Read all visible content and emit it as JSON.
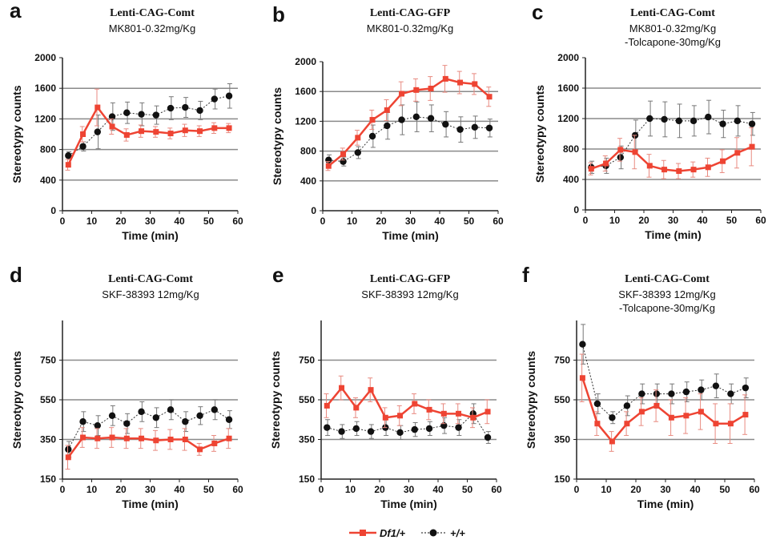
{
  "legend": {
    "entries": [
      {
        "label": "Df1/+",
        "color": "#ee4433",
        "marker": "square"
      },
      {
        "label": "+/+",
        "color": "#111111",
        "marker": "circle"
      }
    ]
  },
  "chart_data": [
    {
      "type": "line",
      "panel_label": "a",
      "title": "Lenti-CAG-Comt",
      "subtitle": [
        "MK801-0.32mg/Kg"
      ],
      "xlabel": "Time (min)",
      "ylabel": "Stereotypy counts",
      "xlim": [
        0,
        60
      ],
      "ylim": [
        0,
        2000
      ],
      "xticks": [
        0,
        10,
        20,
        30,
        40,
        50,
        60
      ],
      "yticks": [
        0,
        400,
        800,
        1200,
        1600,
        2000
      ],
      "gridlines_y": [
        400,
        800,
        1200,
        1600
      ],
      "x": [
        2,
        7,
        12,
        17,
        22,
        27,
        32,
        37,
        42,
        47,
        52,
        57
      ],
      "series": [
        {
          "name": "Df1/+",
          "values": [
            600,
            1000,
            1350,
            1100,
            990,
            1040,
            1030,
            1010,
            1050,
            1040,
            1080,
            1080
          ],
          "err": [
            70,
            100,
            240,
            100,
            80,
            80,
            70,
            70,
            80,
            70,
            70,
            60
          ]
        },
        {
          "name": "+/+",
          "values": [
            720,
            840,
            1030,
            1230,
            1280,
            1260,
            1250,
            1340,
            1350,
            1310,
            1460,
            1500
          ],
          "err": [
            50,
            60,
            220,
            180,
            140,
            150,
            120,
            150,
            130,
            120,
            130,
            160
          ]
        }
      ]
    },
    {
      "type": "line",
      "panel_label": "b",
      "title": "Lenti-CAG-GFP",
      "subtitle": [
        "MK801-0.32mg/Kg"
      ],
      "xlabel": "Time (min)",
      "ylabel": "Stereotypy counts",
      "xlim": [
        0,
        60
      ],
      "ylim": [
        0,
        2000
      ],
      "xticks": [
        0,
        10,
        20,
        30,
        40,
        50,
        60
      ],
      "yticks": [
        0,
        400,
        800,
        1200,
        1600,
        2000
      ],
      "gridlines_y": [
        400,
        800,
        1200,
        1600
      ],
      "x": [
        2,
        7,
        12,
        17,
        22,
        27,
        32,
        37,
        42,
        47,
        52,
        57
      ],
      "series": [
        {
          "name": "Df1/+",
          "values": [
            600,
            760,
            980,
            1220,
            1350,
            1570,
            1620,
            1640,
            1770,
            1720,
            1700,
            1530
          ],
          "err": [
            60,
            80,
            100,
            130,
            140,
            160,
            150,
            160,
            180,
            150,
            140,
            130
          ]
        },
        {
          "name": "+/+",
          "values": [
            680,
            660,
            780,
            1000,
            1140,
            1220,
            1260,
            1240,
            1160,
            1090,
            1120,
            1110
          ],
          "err": [
            70,
            60,
            80,
            150,
            180,
            200,
            200,
            180,
            170,
            170,
            150,
            120
          ]
        }
      ]
    },
    {
      "type": "line",
      "panel_label": "c",
      "title": "Lenti-CAG-Comt",
      "subtitle": [
        "MK801-0.32mg/Kg",
        "-Tolcapone-30mg/Kg"
      ],
      "xlabel": "Time (min)",
      "ylabel": "Stereotypy counts",
      "xlim": [
        0,
        60
      ],
      "ylim": [
        0,
        2000
      ],
      "xticks": [
        0,
        10,
        20,
        30,
        40,
        50,
        60
      ],
      "yticks": [
        0,
        400,
        800,
        1200,
        1600,
        2000
      ],
      "gridlines_y": [
        400,
        800,
        1200,
        1600
      ],
      "x": [
        2,
        7,
        12,
        17,
        22,
        27,
        32,
        37,
        42,
        47,
        52,
        57
      ],
      "series": [
        {
          "name": "Df1/+",
          "values": [
            540,
            610,
            790,
            760,
            580,
            530,
            510,
            530,
            560,
            640,
            750,
            830
          ],
          "err": [
            80,
            100,
            150,
            220,
            150,
            120,
            100,
            100,
            120,
            150,
            200,
            250
          ]
        },
        {
          "name": "+/+",
          "values": [
            560,
            580,
            690,
            980,
            1200,
            1190,
            1170,
            1170,
            1220,
            1130,
            1170,
            1130
          ],
          "err": [
            80,
            100,
            150,
            200,
            230,
            230,
            220,
            200,
            220,
            180,
            200,
            150
          ]
        }
      ]
    },
    {
      "type": "line",
      "panel_label": "d",
      "title": "Lenti-CAG-Comt",
      "subtitle": [
        "SKF-38393 12mg/Kg"
      ],
      "xlabel": "Time (min)",
      "ylabel": "Stereotypy counts",
      "xlim": [
        0,
        60
      ],
      "ylim": [
        150,
        950
      ],
      "xticks": [
        0,
        10,
        20,
        30,
        40,
        50,
        60
      ],
      "yticks": [
        150,
        350,
        550,
        750
      ],
      "gridlines_y": [
        350,
        550,
        750
      ],
      "x": [
        2,
        7,
        12,
        17,
        22,
        27,
        32,
        37,
        42,
        47,
        52,
        57
      ],
      "series": [
        {
          "name": "Df1/+",
          "values": [
            260,
            360,
            355,
            360,
            355,
            355,
            345,
            350,
            350,
            300,
            330,
            355
          ],
          "err": [
            60,
            50,
            50,
            50,
            50,
            50,
            50,
            50,
            55,
            30,
            40,
            50
          ]
        },
        {
          "name": "+/+",
          "values": [
            300,
            440,
            420,
            470,
            430,
            490,
            460,
            500,
            440,
            470,
            500,
            450
          ],
          "err": [
            40,
            50,
            50,
            50,
            50,
            50,
            50,
            50,
            50,
            45,
            50,
            45
          ]
        }
      ]
    },
    {
      "type": "line",
      "panel_label": "e",
      "title": "Lenti-CAG-GFP",
      "subtitle": [
        "SKF-38393 12mg/Kg"
      ],
      "xlabel": "Time (min)",
      "ylabel": "Stereotypy counts",
      "xlim": [
        0,
        60
      ],
      "ylim": [
        150,
        950
      ],
      "xticks": [
        0,
        10,
        20,
        30,
        40,
        50,
        60
      ],
      "yticks": [
        150,
        350,
        550,
        750
      ],
      "gridlines_y": [
        350,
        550,
        750
      ],
      "x": [
        2,
        7,
        12,
        17,
        22,
        27,
        32,
        37,
        42,
        47,
        52,
        57
      ],
      "series": [
        {
          "name": "Df1/+",
          "values": [
            520,
            610,
            510,
            600,
            460,
            470,
            530,
            500,
            480,
            480,
            460,
            490
          ],
          "err": [
            60,
            60,
            50,
            60,
            50,
            50,
            50,
            50,
            50,
            50,
            50,
            60
          ]
        },
        {
          "name": "+/+",
          "values": [
            410,
            390,
            405,
            390,
            410,
            385,
            400,
            405,
            420,
            410,
            480,
            360
          ],
          "err": [
            40,
            35,
            35,
            35,
            40,
            35,
            35,
            35,
            40,
            40,
            50,
            30
          ]
        }
      ]
    },
    {
      "type": "line",
      "panel_label": "f",
      "title": "Lenti-CAG-Comt",
      "subtitle": [
        "SKF-38393 12mg/Kg",
        "-Tolcapone-30mg/Kg"
      ],
      "xlabel": "Time (min)",
      "ylabel": "Stereotypy counts",
      "xlim": [
        0,
        60
      ],
      "ylim": [
        150,
        950
      ],
      "xticks": [
        0,
        10,
        20,
        30,
        40,
        50,
        60
      ],
      "yticks": [
        150,
        350,
        550,
        750
      ],
      "gridlines_y": [
        350,
        550,
        750
      ],
      "x": [
        2,
        7,
        12,
        17,
        22,
        27,
        32,
        37,
        42,
        47,
        52,
        57
      ],
      "series": [
        {
          "name": "Df1/+",
          "values": [
            660,
            430,
            340,
            430,
            490,
            520,
            460,
            470,
            490,
            430,
            430,
            475
          ],
          "err": [
            120,
            60,
            50,
            60,
            70,
            80,
            90,
            90,
            90,
            100,
            100,
            100
          ]
        },
        {
          "name": "+/+",
          "values": [
            830,
            530,
            460,
            520,
            580,
            580,
            580,
            590,
            600,
            620,
            580,
            610
          ],
          "err": [
            100,
            50,
            30,
            50,
            50,
            50,
            50,
            50,
            50,
            60,
            50,
            50
          ]
        }
      ]
    }
  ]
}
